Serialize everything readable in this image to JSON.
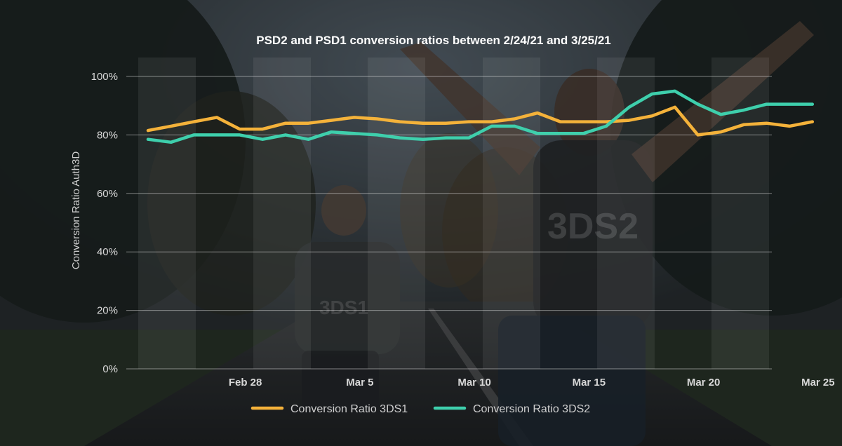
{
  "chart_data": {
    "type": "line",
    "title": "PSD2 and PSD1 conversion ratios between 2/24/21 and 3/25/21",
    "xlabel": "",
    "ylabel": "Conversion Ratio Auth3D",
    "ylim": [
      0,
      100
    ],
    "yticks": [
      "0%",
      "20%",
      "40%",
      "60%",
      "80%",
      "100%"
    ],
    "ytick_values": [
      0,
      20,
      40,
      60,
      80,
      100
    ],
    "x_start": "2021-02-24",
    "xticks": [
      {
        "label": "Feb 28",
        "date": "2021-02-28"
      },
      {
        "label": "Mar 5",
        "date": "2021-03-05"
      },
      {
        "label": "Mar 10",
        "date": "2021-03-10"
      },
      {
        "label": "Mar 15",
        "date": "2021-03-15"
      },
      {
        "label": "Mar 20",
        "date": "2021-03-20"
      },
      {
        "label": "Mar 25",
        "date": "2021-03-25"
      }
    ],
    "x": [
      "2021-02-24",
      "2021-02-25",
      "2021-02-26",
      "2021-02-27",
      "2021-02-28",
      "2021-03-01",
      "2021-03-02",
      "2021-03-03",
      "2021-03-04",
      "2021-03-05",
      "2021-03-06",
      "2021-03-07",
      "2021-03-08",
      "2021-03-09",
      "2021-03-10",
      "2021-03-11",
      "2021-03-12",
      "2021-03-13",
      "2021-03-14",
      "2021-03-15",
      "2021-03-16",
      "2021-03-17",
      "2021-03-18",
      "2021-03-19",
      "2021-03-20",
      "2021-03-21",
      "2021-03-22",
      "2021-03-23",
      "2021-03-24",
      "2021-03-25"
    ],
    "series": [
      {
        "name": "Conversion Ratio 3DS1",
        "color": "#f4b23a",
        "values": [
          81.5,
          83,
          84.5,
          86,
          82,
          82,
          84,
          84,
          85,
          86,
          85.5,
          84.5,
          84,
          84,
          84.5,
          84.5,
          85.5,
          87.5,
          84.5,
          84.5,
          84.5,
          85,
          86.5,
          89.5,
          80,
          81,
          83.5,
          84,
          83,
          84.5
        ]
      },
      {
        "name": "Conversion Ratio 3DS2",
        "color": "#3ecfac",
        "values": [
          78.5,
          77.5,
          80,
          80,
          80,
          78.5,
          80,
          78.5,
          81,
          80.5,
          80,
          79,
          78.5,
          79,
          79,
          83,
          83,
          80.5,
          80.5,
          80.5,
          83,
          89.5,
          94,
          95,
          90.5,
          87,
          88.5,
          90.5,
          90.5,
          90.5
        ]
      }
    ],
    "legend_position": "bottom",
    "grid": true,
    "bg_labels": [
      "3DS2",
      "3DS1"
    ]
  }
}
